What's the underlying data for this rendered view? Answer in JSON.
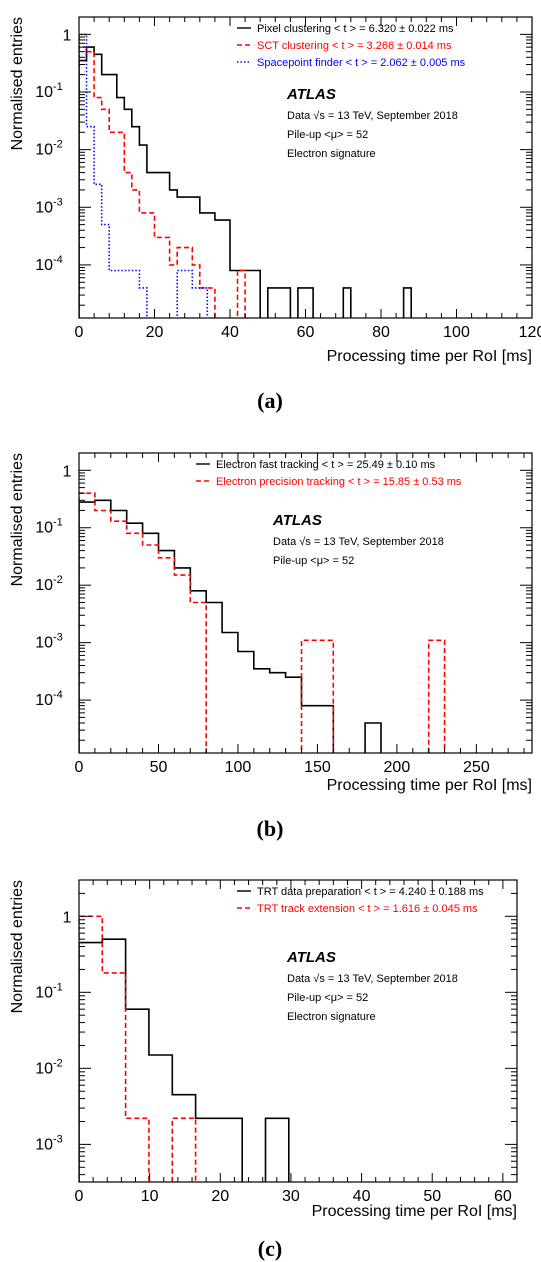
{
  "chart_data": [
    {
      "type": "line",
      "caption": "(a)",
      "xlabel": "Processing time per RoI [ms]",
      "ylabel": "Normalised entries",
      "xlim": [
        0,
        120
      ],
      "ylim": [
        1.2e-05,
        2
      ],
      "ylog": true,
      "xticks": [
        0,
        20,
        40,
        60,
        80,
        100,
        120
      ],
      "yticks": [
        0.0001,
        0.001,
        0.01,
        0.1,
        1
      ],
      "ytick_labels": [
        "10^-4",
        "10^-3",
        "10^-2",
        "10^-1",
        "1"
      ],
      "legend_position": "top-right",
      "atlas_label": "ATLAS",
      "info_lines": [
        "Data √s = 13 TeV, September 2018",
        "Pile-up <μ> = 52",
        "Electron signature"
      ],
      "series": [
        {
          "name": "Pixel clustering",
          "mean_label": "< t > = 6.320 ± 0.022 ms",
          "color": "#000000",
          "style": "solid",
          "bin_edges": [
            0,
            2,
            4,
            6,
            8,
            10,
            12,
            14,
            16,
            18,
            20,
            22,
            24,
            26,
            28,
            30,
            32,
            34,
            36,
            38,
            40,
            42,
            44,
            46,
            48,
            50,
            52,
            54,
            56,
            58,
            60,
            62,
            64,
            66,
            68,
            70,
            72,
            74,
            76,
            78,
            80,
            82,
            84,
            86,
            88
          ],
          "values": [
            0.35,
            0.6,
            0.45,
            0.2,
            0.2,
            0.08,
            0.05,
            0.025,
            0.012,
            0.004,
            0.004,
            0.004,
            0.002,
            0.0015,
            0.0015,
            0.0015,
            0.0008,
            0.0008,
            0.0006,
            0.0006,
            8e-05,
            8e-05,
            8e-05,
            8e-05,
            0,
            4e-05,
            4e-05,
            4e-05,
            0,
            4e-05,
            4e-05,
            0,
            0,
            0,
            0,
            4e-05,
            0,
            0,
            0,
            0,
            0,
            0,
            0,
            4e-05
          ]
        },
        {
          "name": "SCT clustering",
          "mean_label": "< t > = 3.266 ± 0.014 ms",
          "color": "#ff0000",
          "style": "dashed",
          "bin_edges": [
            0,
            2,
            4,
            6,
            8,
            10,
            12,
            14,
            16,
            18,
            20,
            22,
            24,
            26,
            28,
            30,
            32,
            34,
            36,
            38,
            40,
            42,
            44
          ],
          "values": [
            0.6,
            0.5,
            0.08,
            0.05,
            0.02,
            0.02,
            0.004,
            0.002,
            0.0008,
            0.0008,
            0.0003,
            0.0003,
            0.0001,
            0.0002,
            0.0002,
            0.0001,
            4e-05,
            4e-05,
            0,
            0,
            0,
            8e-05
          ]
        },
        {
          "name": "Spacepoint finder",
          "mean_label": "< t > = 2.062 ± 0.005 ms",
          "color": "#0000ff",
          "style": "dotted",
          "bin_edges": [
            0,
            2,
            4,
            6,
            8,
            10,
            12,
            14,
            16,
            18,
            20,
            22,
            24,
            26,
            28,
            30,
            32,
            34
          ],
          "values": [
            1.0,
            0.025,
            0.0025,
            0.0005,
            8e-05,
            8e-05,
            8e-05,
            8e-05,
            4e-05,
            0,
            0,
            0,
            0,
            8e-05,
            8e-05,
            4e-05,
            4e-05
          ]
        }
      ]
    },
    {
      "type": "line",
      "caption": "(b)",
      "xlabel": "Processing time per RoI [ms]",
      "ylabel": "Normalised entries",
      "xlim": [
        0,
        285
      ],
      "ylim": [
        1.2e-05,
        2
      ],
      "ylog": true,
      "xticks": [
        0,
        50,
        100,
        150,
        200,
        250
      ],
      "yticks": [
        0.0001,
        0.001,
        0.01,
        0.1,
        1
      ],
      "ytick_labels": [
        "10^-4",
        "10^-3",
        "10^-2",
        "10^-1",
        "1"
      ],
      "legend_position": "top-right",
      "atlas_label": "ATLAS",
      "info_lines": [
        "Data √s = 13 TeV, September 2018",
        "Pile-up <μ> = 52"
      ],
      "series": [
        {
          "name": "Electron fast tracking",
          "mean_label": "< t > = 25.49 ±  0.10 ms",
          "color": "#000000",
          "style": "solid",
          "bin_edges": [
            0,
            10,
            20,
            30,
            40,
            50,
            60,
            70,
            80,
            90,
            100,
            110,
            120,
            130,
            140,
            150,
            160,
            170,
            180,
            190
          ],
          "values": [
            0.28,
            0.3,
            0.2,
            0.12,
            0.08,
            0.04,
            0.02,
            0.008,
            0.005,
            0.0015,
            0.0007,
            0.00035,
            0.0003,
            0.00025,
            8e-05,
            8e-05,
            0,
            0,
            4e-05
          ]
        },
        {
          "name": "Electron precision tracking",
          "mean_label": "< t > = 15.85 ±  0.53 ms",
          "color": "#ff0000",
          "style": "dashed",
          "bin_edges": [
            0,
            10,
            20,
            30,
            40,
            50,
            60,
            70,
            80,
            90,
            100,
            110,
            120,
            130,
            140,
            150,
            160,
            170,
            180,
            190,
            200,
            210,
            220,
            230
          ],
          "values": [
            0.4,
            0.2,
            0.13,
            0.08,
            0.05,
            0.03,
            0.015,
            0.005,
            0,
            0,
            0,
            0,
            0,
            0,
            0.0011,
            0.0011,
            0,
            0,
            0,
            0,
            0,
            0,
            0.0011
          ]
        }
      ]
    },
    {
      "type": "line",
      "caption": "(c)",
      "xlabel": "Processing time per RoI [ms]",
      "ylabel": "Normalised entries",
      "xlim": [
        0,
        62
      ],
      "ylim": [
        0.00032,
        3
      ],
      "ylog": true,
      "xticks": [
        0,
        10,
        20,
        30,
        40,
        50,
        60
      ],
      "yticks": [
        0.001,
        0.01,
        0.1,
        1
      ],
      "ytick_labels": [
        "10^-3",
        "10^-2",
        "10^-1",
        "1"
      ],
      "legend_position": "top-right",
      "atlas_label": "ATLAS",
      "info_lines": [
        "Data √s = 13 TeV, September 2018",
        "Pile-up <μ> = 52",
        "Electron signature"
      ],
      "series": [
        {
          "name": "TRT data preparation",
          "mean_label": "< t > = 4.240 ± 0.188 ms",
          "color": "#000000",
          "style": "solid",
          "bin_edges": [
            0,
            3.3,
            6.6,
            9.9,
            13.2,
            16.5,
            19.8,
            23.1,
            26.4,
            29.7
          ],
          "values": [
            0.45,
            0.5,
            0.06,
            0.015,
            0.0045,
            0.0022,
            0.0022,
            0,
            0.0022
          ]
        },
        {
          "name": "TRT track extension",
          "mean_label": "< t > = 1.616 ± 0.045 ms",
          "color": "#ff0000",
          "style": "dashed",
          "bin_edges": [
            0,
            3.3,
            6.6,
            9.9,
            13.2,
            16.5
          ],
          "values": [
            1.0,
            0.18,
            0.0022,
            0,
            0.0022
          ]
        }
      ]
    }
  ]
}
